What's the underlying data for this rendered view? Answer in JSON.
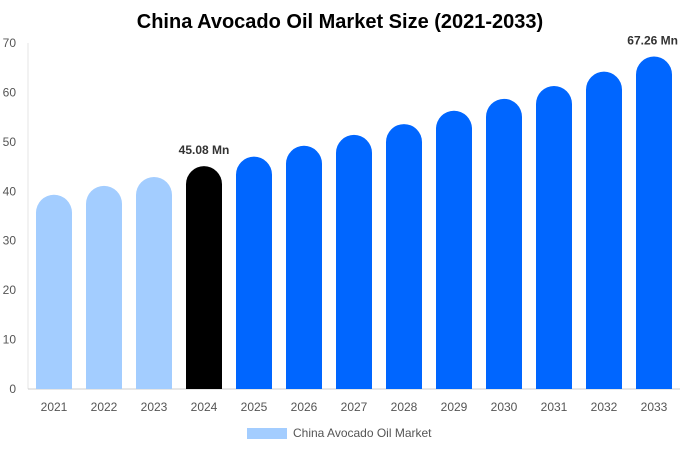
{
  "chart_data": {
    "type": "bar",
    "title": "China Avocado Oil Market Size (2021-2033)",
    "xlabel": "",
    "ylabel": "",
    "ylim": [
      0,
      70
    ],
    "yticks": [
      0,
      10,
      20,
      30,
      40,
      50,
      60,
      70
    ],
    "grid": false,
    "legend_placement": "bottom",
    "categories": [
      "2021",
      "2022",
      "2023",
      "2024",
      "2025",
      "2026",
      "2027",
      "2028",
      "2029",
      "2030",
      "2031",
      "2032",
      "2033"
    ],
    "series": [
      {
        "name": "China Avocado Oil Market",
        "values": [
          39.3,
          41.1,
          42.9,
          45.08,
          47.0,
          49.2,
          51.4,
          53.6,
          56.3,
          58.7,
          61.3,
          64.2,
          67.26
        ]
      }
    ],
    "bar_colors": [
      "#a3cdff",
      "#a3cdff",
      "#a3cdff",
      "#000000",
      "#0066ff",
      "#0066ff",
      "#0066ff",
      "#0066ff",
      "#0066ff",
      "#0066ff",
      "#0066ff",
      "#0066ff",
      "#0066ff"
    ],
    "legend_color": "#a3cdff",
    "annotations": [
      {
        "category": "2024",
        "text": "45.08 Mn"
      },
      {
        "category": "2033",
        "text": "67.26 Mn"
      }
    ]
  }
}
